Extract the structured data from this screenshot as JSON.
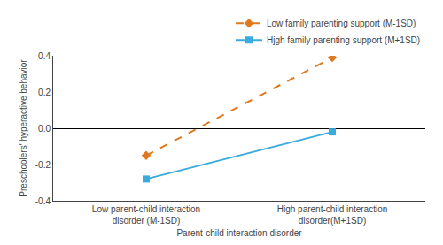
{
  "chart_data": {
    "type": "line",
    "xlabel": "Parent-child interaction disorder",
    "ylabel": "Preschoolers' hyperactive behavior",
    "categories": [
      "Low parent-child interaction\ndisorder (M-1SD)",
      "High parent-child interaction\ndisorder(M+1SD)"
    ],
    "series": [
      {
        "name": "Low family parenting support (M-1SD)",
        "color": "#e07820",
        "line_style": "dashed",
        "marker": "diamond",
        "values": [
          -0.15,
          0.39
        ]
      },
      {
        "name": "Hjgh family parenting support (M+1SD)",
        "color": "#3aabdc",
        "line_style": "solid",
        "marker": "square",
        "values": [
          -0.28,
          -0.02
        ]
      }
    ],
    "ylim": [
      -0.4,
      0.4
    ],
    "yticks": [
      -0.4,
      -0.2,
      {
        "value": 0.0,
        "label": "0.0"
      },
      0.2,
      0.4
    ],
    "grid": false,
    "legend": "top"
  }
}
